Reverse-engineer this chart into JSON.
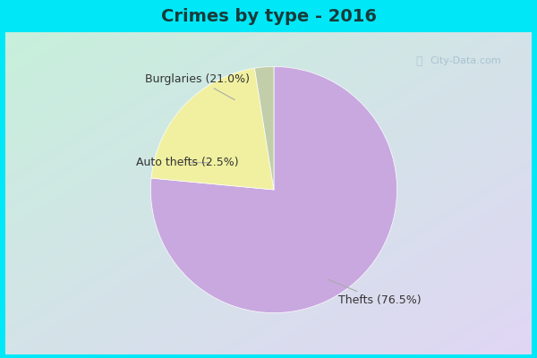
{
  "title": "Crimes by type - 2016",
  "slices": [
    {
      "label": "Thefts (76.5%)",
      "value": 76.5,
      "color": "#c9a8e0"
    },
    {
      "label": "Burglaries (21.0%)",
      "value": 21.0,
      "color": "#f0f0a0"
    },
    {
      "label": "Auto thefts (2.5%)",
      "value": 2.5,
      "color": "#c2ceaa"
    }
  ],
  "title_fontsize": 14,
  "title_color": "#1a3a3a",
  "label_fontsize": 9,
  "label_color": "#333333",
  "bg_cyan": "#00e8f8",
  "bg_tl": [
    0.78,
    0.94,
    0.86
  ],
  "bg_br": [
    0.88,
    0.84,
    0.96
  ],
  "watermark": "City-Data.com"
}
